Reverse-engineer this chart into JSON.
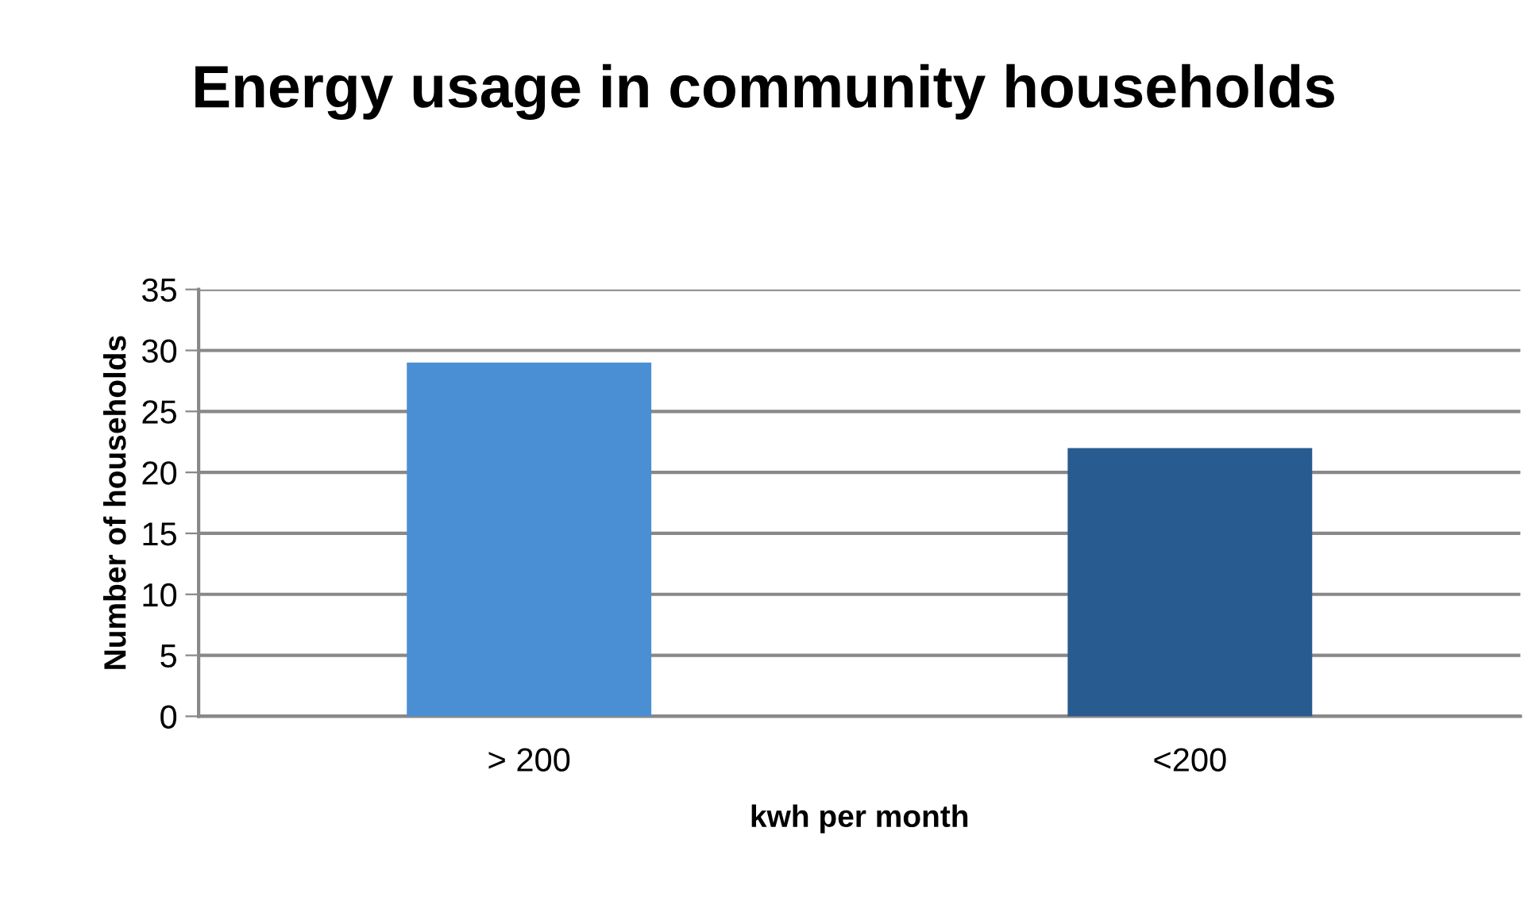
{
  "chart_data": {
    "type": "bar",
    "title": "Energy usage in community households",
    "xlabel": "kwh per month",
    "ylabel": "Number of households",
    "categories": [
      "> 200",
      "<200"
    ],
    "values": [
      29,
      22
    ],
    "colors": [
      "#4a8fd4",
      "#285b8f"
    ],
    "ylim": [
      0,
      35
    ],
    "yticks": [
      0,
      5,
      10,
      15,
      20,
      25,
      30,
      35
    ],
    "grid": "y",
    "legend": false
  }
}
